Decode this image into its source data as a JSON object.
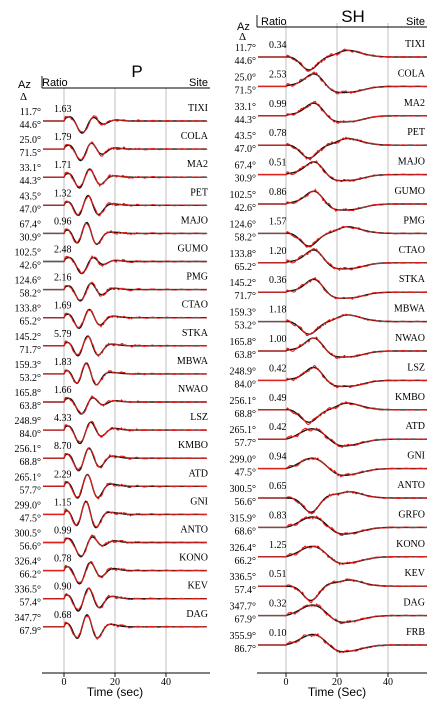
{
  "chart_data": [
    {
      "type": "line",
      "panel": "P",
      "title": "P",
      "header_left": "Ratio",
      "header_right": "Site",
      "az_label": "Az",
      "delta_label": "Δ",
      "xlabel": "Time (sec)",
      "xlim": [
        -8,
        56
      ],
      "xticks": [
        0,
        20,
        40
      ],
      "legend": "none",
      "grid": true,
      "series": [
        {
          "name": "observed",
          "color": "#e0201c"
        },
        {
          "name": "synthetic",
          "color": "#111111"
        }
      ],
      "stations": [
        {
          "site": "TIXI",
          "az": "11.7°",
          "delta": "44.6°",
          "ratio": "1.63"
        },
        {
          "site": "COLA",
          "az": "25.0°",
          "delta": "71.5°",
          "ratio": "1.79"
        },
        {
          "site": "MA2",
          "az": "33.1°",
          "delta": "44.3°",
          "ratio": "1.71"
        },
        {
          "site": "PET",
          "az": "43.5°",
          "delta": "47.0°",
          "ratio": "1.32"
        },
        {
          "site": "MAJO",
          "az": "67.4°",
          "delta": "30.9°",
          "ratio": "0.96"
        },
        {
          "site": "GUMO",
          "az": "102.5°",
          "delta": "42.6°",
          "ratio": "2.48"
        },
        {
          "site": "PMG",
          "az": "124.6°",
          "delta": "58.2°",
          "ratio": "2.16"
        },
        {
          "site": "CTAO",
          "az": "133.8°",
          "delta": "65.2°",
          "ratio": "1.69"
        },
        {
          "site": "STKA",
          "az": "145.2°",
          "delta": "71.7°",
          "ratio": "5.79"
        },
        {
          "site": "MBWA",
          "az": "159.3°",
          "delta": "53.2°",
          "ratio": "1.83"
        },
        {
          "site": "NWAO",
          "az": "165.8°",
          "delta": "63.8°",
          "ratio": "1.66"
        },
        {
          "site": "LSZ",
          "az": "248.9°",
          "delta": "84.0°",
          "ratio": "4.33"
        },
        {
          "site": "KMBO",
          "az": "256.1°",
          "delta": "68.8°",
          "ratio": "8.70"
        },
        {
          "site": "ATD",
          "az": "265.1°",
          "delta": "57.7°",
          "ratio": "2.29"
        },
        {
          "site": "GNI",
          "az": "299.0°",
          "delta": "47.5°",
          "ratio": "1.15"
        },
        {
          "site": "ANTO",
          "az": "300.5°",
          "delta": "56.6°",
          "ratio": "0.99"
        },
        {
          "site": "KONO",
          "az": "326.4°",
          "delta": "66.2°",
          "ratio": "0.78"
        },
        {
          "site": "KEV",
          "az": "336.5°",
          "delta": "57.4°",
          "ratio": "0.90"
        },
        {
          "site": "DAG",
          "az": "347.7°",
          "delta": "67.9°",
          "ratio": "0.68"
        }
      ]
    },
    {
      "type": "line",
      "panel": "SH",
      "title": "SH",
      "header_left": "Ratio",
      "header_right": "Site",
      "az_label": "Az",
      "delta_label": "Δ",
      "xlabel": "Time (Sec)",
      "xlim": [
        -8,
        56
      ],
      "xticks": [
        0,
        20,
        40
      ],
      "legend": "none",
      "grid": true,
      "series": [
        {
          "name": "observed",
          "color": "#e0201c"
        },
        {
          "name": "synthetic",
          "color": "#111111"
        }
      ],
      "stations": [
        {
          "site": "TIXI",
          "az": "11.7°",
          "delta": "44.6°",
          "ratio": "0.34"
        },
        {
          "site": "COLA",
          "az": "25.0°",
          "delta": "71.5°",
          "ratio": "2.53"
        },
        {
          "site": "MA2",
          "az": "33.1°",
          "delta": "44.3°",
          "ratio": "0.99"
        },
        {
          "site": "PET",
          "az": "43.5°",
          "delta": "47.0°",
          "ratio": "0.78"
        },
        {
          "site": "MAJO",
          "az": "67.4°",
          "delta": "30.9°",
          "ratio": "0.51"
        },
        {
          "site": "GUMO",
          "az": "102.5°",
          "delta": "42.6°",
          "ratio": "0.86"
        },
        {
          "site": "PMG",
          "az": "124.6°",
          "delta": "58.2°",
          "ratio": "1.57"
        },
        {
          "site": "CTAO",
          "az": "133.8°",
          "delta": "65.2°",
          "ratio": "1.20"
        },
        {
          "site": "STKA",
          "az": "145.2°",
          "delta": "71.7°",
          "ratio": "0.36"
        },
        {
          "site": "MBWA",
          "az": "159.3°",
          "delta": "53.2°",
          "ratio": "1.18"
        },
        {
          "site": "NWAO",
          "az": "165.8°",
          "delta": "63.8°",
          "ratio": "1.00"
        },
        {
          "site": "LSZ",
          "az": "248.9°",
          "delta": "84.0°",
          "ratio": "0.42"
        },
        {
          "site": "KMBO",
          "az": "256.1°",
          "delta": "68.8°",
          "ratio": "0.49"
        },
        {
          "site": "ATD",
          "az": "265.1°",
          "delta": "57.7°",
          "ratio": "0.42"
        },
        {
          "site": "GNI",
          "az": "299.0°",
          "delta": "47.5°",
          "ratio": "0.94"
        },
        {
          "site": "ANTO",
          "az": "300.5°",
          "delta": "56.6°",
          "ratio": "0.65"
        },
        {
          "site": "GRFO",
          "az": "315.9°",
          "delta": "68.6°",
          "ratio": "0.83"
        },
        {
          "site": "KONO",
          "az": "326.4°",
          "delta": "66.2°",
          "ratio": "1.25"
        },
        {
          "site": "KEV",
          "az": "336.5°",
          "delta": "57.4°",
          "ratio": "0.51"
        },
        {
          "site": "DAG",
          "az": "347.7°",
          "delta": "67.9°",
          "ratio": "0.32"
        },
        {
          "site": "FRB",
          "az": "355.9°",
          "delta": "86.7°",
          "ratio": "0.10"
        }
      ]
    }
  ]
}
